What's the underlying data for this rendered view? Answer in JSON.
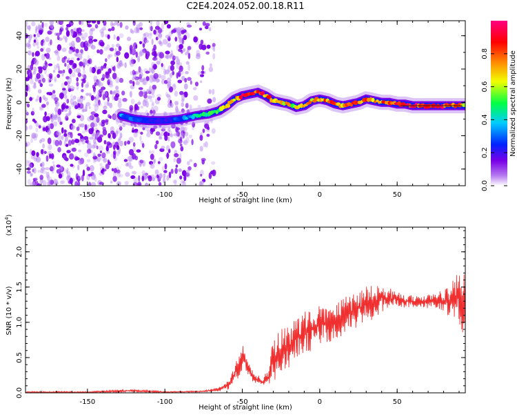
{
  "title": "C2E4.2024.052.00.18.R11",
  "chart_data": [
    {
      "type": "heatmap",
      "id": "spectrogram",
      "xlabel": "Height of straight line (km)",
      "ylabel": "Frequency (Hz)",
      "xlim": [
        -190,
        94
      ],
      "ylim": [
        -50,
        49
      ],
      "xticks": [
        -150,
        -100,
        -50,
        0,
        50
      ],
      "yticks": [
        -40,
        -20,
        0,
        20,
        40
      ],
      "colorbar": {
        "label": "Normalized spectral amplitude",
        "range": [
          0,
          1
        ],
        "ticks": [
          0.0,
          0.2,
          0.4,
          0.6,
          0.8
        ],
        "colormap": "rainbow",
        "colors": [
          "#ffffff",
          "#7a00e6",
          "#0022ff",
          "#00ccff",
          "#00ff44",
          "#f0ff00",
          "#ff8800",
          "#ff0000",
          "#ff0080"
        ]
      },
      "noise_region_x": [
        -190,
        -68
      ],
      "trace": {
        "x": [
          -128,
          -120,
          -110,
          -100,
          -90,
          -80,
          -72,
          -65,
          -60,
          -55,
          -50,
          -45,
          -40,
          -35,
          -30,
          -25,
          -20,
          -15,
          -10,
          -5,
          0,
          5,
          10,
          15,
          20,
          25,
          30,
          35,
          40,
          45,
          50,
          55,
          60,
          65,
          70,
          75,
          80,
          85,
          90,
          94
        ],
        "y": [
          -8,
          -10,
          -11,
          -11,
          -10,
          -8,
          -7,
          -5,
          -2,
          2,
          4,
          5,
          6,
          4,
          1,
          0,
          -1,
          -3,
          -2,
          1,
          2,
          1,
          -1,
          -2,
          -1,
          0,
          2,
          1,
          0,
          0,
          -1,
          -1,
          -2,
          -2,
          -2,
          -2,
          -2,
          -2,
          -2,
          -2
        ],
        "amplitude": [
          0.35,
          0.3,
          0.25,
          0.2,
          0.3,
          0.45,
          0.5,
          0.55,
          0.65,
          0.75,
          0.9,
          0.95,
          0.9,
          0.85,
          0.8,
          0.75,
          0.7,
          0.65,
          0.7,
          0.75,
          0.8,
          0.85,
          0.8,
          0.75,
          0.8,
          0.85,
          0.9,
          0.8,
          0.8,
          0.85,
          0.9,
          0.95,
          0.98,
          0.95,
          0.9,
          0.95,
          0.9,
          0.85,
          0.8,
          0.75
        ]
      }
    },
    {
      "type": "line",
      "id": "snr",
      "xlabel": "Height of straight line (km)",
      "ylabel": "SNR (10 * v/v)",
      "y_multiplier": "(x10",
      "y_multiplier_exp": "4",
      "y_multiplier_close": ")",
      "xlim": [
        -190,
        94
      ],
      "ylim": [
        0,
        2.35
      ],
      "xticks": [
        -150,
        -100,
        -50,
        0,
        50
      ],
      "yticks": [
        0.0,
        0.5,
        1.0,
        1.5,
        2.0
      ],
      "series": [
        {
          "color": "#f03030",
          "x": [
            -190,
            -150,
            -120,
            -100,
            -75,
            -65,
            -58,
            -54,
            -50,
            -48,
            -45,
            -42,
            -40,
            -37,
            -35,
            -33,
            -30,
            -27,
            -25,
            -20,
            -15,
            -10,
            -5,
            0,
            5,
            10,
            15,
            20,
            25,
            30,
            35,
            40,
            45,
            50,
            55,
            60,
            65,
            70,
            75,
            80,
            85,
            90,
            94
          ],
          "y": [
            0.01,
            0.01,
            0.03,
            0.01,
            0.02,
            0.05,
            0.12,
            0.3,
            0.5,
            0.45,
            0.3,
            0.18,
            0.2,
            0.15,
            0.2,
            0.2,
            0.5,
            0.55,
            0.6,
            0.65,
            0.8,
            0.85,
            0.9,
            1.0,
            0.95,
            1.05,
            1.1,
            1.15,
            1.2,
            1.25,
            1.3,
            1.35,
            1.3,
            1.35,
            1.3,
            1.3,
            1.28,
            1.3,
            1.32,
            1.3,
            1.3,
            1.4,
            1.2
          ],
          "noise": [
            0.01,
            0.01,
            0.02,
            0.01,
            0.01,
            0.03,
            0.08,
            0.15,
            0.18,
            0.15,
            0.1,
            0.08,
            0.08,
            0.06,
            0.08,
            0.1,
            0.35,
            0.3,
            0.3,
            0.3,
            0.3,
            0.3,
            0.3,
            0.3,
            0.3,
            0.3,
            0.28,
            0.28,
            0.28,
            0.27,
            0.25,
            0.22,
            0.18,
            0.14,
            0.1,
            0.08,
            0.08,
            0.1,
            0.12,
            0.15,
            0.25,
            0.4,
            0.5
          ]
        }
      ]
    }
  ]
}
